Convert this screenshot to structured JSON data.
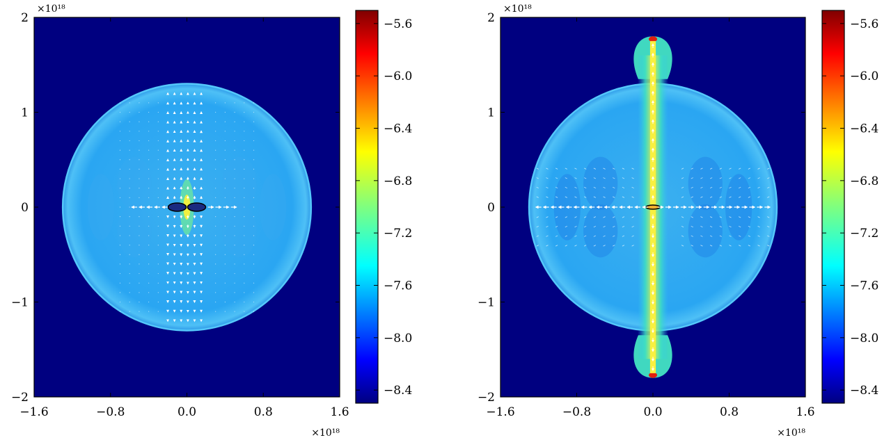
{
  "chart_data": [
    {
      "type": "heatmap",
      "title": "",
      "xlabel": "",
      "ylabel": "",
      "xlim": [
        -1.6,
        1.6
      ],
      "ylim": [
        -2,
        2
      ],
      "x_multiplier": "×10¹⁸",
      "y_multiplier": "×10¹⁸",
      "xticks": [
        "−1.6",
        "−0.8",
        "0.0",
        "0.8",
        "1.6"
      ],
      "yticks": [
        "2",
        "1",
        "0",
        "−1",
        "−2"
      ],
      "colorbar": {
        "range": [
          -8.5,
          -5.5
        ],
        "colormap": "jet",
        "ticks": [
          "−5.6",
          "−6.0",
          "−6.4",
          "−6.8",
          "−7.2",
          "−7.6",
          "−8.0",
          "−8.4"
        ]
      },
      "features": {
        "background_level": -8.5,
        "shell_level": -7.7,
        "shell_radius": 1.3,
        "bipolar_jet": false,
        "velocity_field": "white arrows pointing outward along the axis"
      }
    },
    {
      "type": "heatmap",
      "title": "",
      "xlabel": "",
      "ylabel": "",
      "xlim": [
        -1.6,
        1.6
      ],
      "ylim": [
        -2,
        2
      ],
      "x_multiplier": "×10¹⁸",
      "y_multiplier": "×10¹⁸",
      "xticks": [
        "−1.6",
        "−0.8",
        "0.0",
        "0.8",
        "1.6"
      ],
      "yticks": [
        "2",
        "1",
        "0",
        "−1",
        "−2"
      ],
      "colorbar": {
        "range": [
          -8.5,
          -5.5
        ],
        "colormap": "jet",
        "ticks": [
          "−5.6",
          "−6.0",
          "−6.4",
          "−6.8",
          "−7.2",
          "−7.6",
          "−8.0",
          "−8.4"
        ]
      },
      "features": {
        "background_level": -8.5,
        "shell_level": -7.7,
        "shell_radius": 1.3,
        "bipolar_jet": true,
        "jet_extent_y": [
          -1.8,
          1.8
        ],
        "velocity_field": "white arrows along the jet axis and outward along the midplane"
      }
    }
  ]
}
